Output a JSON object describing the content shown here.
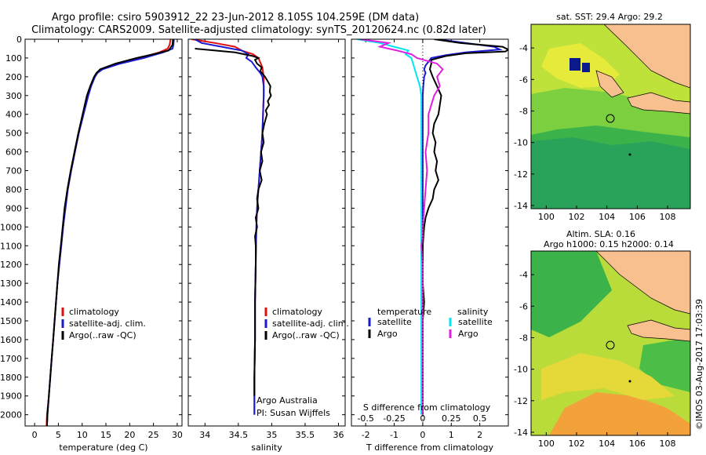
{
  "header": {
    "title_line1": "Argo profile: csiro 5903912_22 23-Jun-2012 8.105S 104.259E (DM data)",
    "title_line2": "Climatology: CARS2009. Satellite-adjusted climatology: synTS_20120624.nc (0.82d later)"
  },
  "colors": {
    "climatology": "#e01010",
    "satellite": "#1a1ad0",
    "argo": "#000000",
    "salinity_satellite": "#00e5ee",
    "salinity_argo": "#e020e0",
    "land": "#f7c08e",
    "sst_deep": "#2fa84f",
    "sla_warm": "#f3a23b"
  },
  "chart_data": [
    {
      "type": "line",
      "panel": "temperature",
      "xlabel": "temperature (deg C)",
      "xlim": [
        -2,
        31
      ],
      "xticks": [
        0,
        5,
        10,
        15,
        20,
        25,
        30
      ],
      "ylim": [
        0,
        2060
      ],
      "yticks": [
        0,
        100,
        200,
        300,
        400,
        500,
        600,
        700,
        800,
        900,
        1000,
        1100,
        1200,
        1300,
        1400,
        1500,
        1600,
        1700,
        1800,
        1900,
        2000
      ],
      "y_inverted": true,
      "legend": [
        "climatology",
        "satellite-adj. clim.",
        "Argo(..raw -QC)"
      ],
      "series": [
        {
          "name": "climatology",
          "color": "climatology",
          "depth": [
            0,
            30,
            50,
            70,
            100,
            130,
            160,
            180,
            200,
            250,
            300,
            400,
            500,
            600,
            700,
            800,
            900,
            1000,
            1100,
            1200,
            1300,
            1400,
            1500,
            1600,
            1700,
            1800,
            1900,
            2000,
            2060
          ],
          "values": [
            28.6,
            28.4,
            28.0,
            26.2,
            22.0,
            17.5,
            14.0,
            13.0,
            12.6,
            11.8,
            11.2,
            10.2,
            9.2,
            8.4,
            7.6,
            6.9,
            6.4,
            6.0,
            5.6,
            5.2,
            4.8,
            4.5,
            4.2,
            3.9,
            3.6,
            3.3,
            3.0,
            2.6,
            2.5
          ]
        },
        {
          "name": "satellite-adj. clim.",
          "color": "satellite",
          "depth": [
            0,
            30,
            50,
            70,
            100,
            130,
            160,
            180,
            200,
            250,
            300,
            400,
            500,
            600,
            700,
            800,
            900,
            1000,
            1100,
            1200,
            1300,
            1400,
            1500,
            1600,
            1700,
            1800,
            1900,
            2000,
            2060
          ],
          "values": [
            29.3,
            29.2,
            29.0,
            27.0,
            23.0,
            18.0,
            14.3,
            13.2,
            12.7,
            11.9,
            11.3,
            10.3,
            9.3,
            8.5,
            7.7,
            7.0,
            6.5,
            6.0,
            5.6,
            5.2,
            4.8,
            4.5,
            4.2,
            3.9,
            3.6,
            3.3,
            3.0,
            2.7,
            2.6
          ]
        },
        {
          "name": "Argo(..raw -QC)",
          "color": "argo",
          "depth": [
            0,
            30,
            60,
            80,
            100,
            130,
            160,
            180,
            200,
            250,
            300,
            400,
            500,
            600,
            700,
            800,
            900,
            1000,
            1100,
            1200,
            1300,
            1400,
            1500,
            1600,
            1700,
            1800,
            1900,
            2000,
            2060
          ],
          "values": [
            29.1,
            29.0,
            28.2,
            25.0,
            21.5,
            17.0,
            13.8,
            13.0,
            12.5,
            11.7,
            11.0,
            10.1,
            9.2,
            8.4,
            7.6,
            6.9,
            6.3,
            5.9,
            5.5,
            5.1,
            4.8,
            4.5,
            4.2,
            3.9,
            3.6,
            3.3,
            3.0,
            2.7,
            2.6
          ]
        }
      ]
    },
    {
      "type": "line",
      "panel": "salinity",
      "xlabel": "salinity",
      "xlim": [
        33.75,
        36.1
      ],
      "xticks": [
        34,
        34.5,
        35,
        35.5,
        36
      ],
      "ylim": [
        0,
        2060
      ],
      "y_inverted": true,
      "legend": [
        "climatology",
        "satellite-adj. clim.",
        "Argo(..raw -QC)"
      ],
      "annotation": [
        "Argo Australia",
        "PI: Susan Wijffels"
      ],
      "series": [
        {
          "name": "climatology",
          "color": "climatology",
          "depth": [
            0,
            20,
            40,
            60,
            80,
            100,
            150,
            200,
            300,
            400,
            500,
            600,
            700,
            800,
            900,
            1000,
            1200,
            1400,
            1600,
            1800,
            2000
          ],
          "values": [
            33.8,
            34.15,
            34.45,
            34.55,
            34.72,
            34.8,
            34.86,
            34.88,
            34.88,
            34.87,
            34.86,
            34.84,
            34.82,
            34.8,
            34.78,
            34.77,
            34.76,
            34.75,
            34.75,
            34.74,
            34.74
          ]
        },
        {
          "name": "satellite-adj. clim.",
          "color": "satellite",
          "depth": [
            0,
            20,
            40,
            60,
            80,
            100,
            120,
            150,
            180,
            200,
            250,
            300,
            400,
            500,
            600,
            700,
            800,
            900,
            1000,
            1200,
            1400,
            1600,
            1800,
            2000
          ],
          "values": [
            33.85,
            33.95,
            34.25,
            34.55,
            34.65,
            34.62,
            34.7,
            34.76,
            34.83,
            34.86,
            34.88,
            34.88,
            34.87,
            34.86,
            34.84,
            34.82,
            34.8,
            34.78,
            34.77,
            34.76,
            34.75,
            34.75,
            34.74,
            34.74
          ]
        },
        {
          "name": "Argo(..raw -QC)",
          "color": "argo",
          "depth": [
            50,
            70,
            90,
            100,
            110,
            130,
            150,
            170,
            200,
            230,
            250,
            280,
            300,
            330,
            350,
            380,
            400,
            450,
            500,
            550,
            600,
            650,
            700,
            750,
            800,
            850,
            900,
            950,
            1000,
            1050,
            1100,
            1200,
            1400,
            1600,
            1800,
            1900
          ],
          "values": [
            33.85,
            34.45,
            34.72,
            34.8,
            34.75,
            34.78,
            34.85,
            34.83,
            34.9,
            34.95,
            34.98,
            34.97,
            34.99,
            34.94,
            34.96,
            34.91,
            34.93,
            34.89,
            34.86,
            34.88,
            34.84,
            34.86,
            34.82,
            34.85,
            34.8,
            34.78,
            34.8,
            34.76,
            34.78,
            34.75,
            34.76,
            34.76,
            34.75,
            34.75,
            34.74,
            34.74
          ]
        }
      ]
    },
    {
      "type": "line",
      "panel": "difference",
      "xlabel": "T difference from climatology",
      "xlabel_top": "S difference from climatology",
      "xlim": [
        -2.5,
        3
      ],
      "xticks": [
        -2,
        -1,
        0,
        1,
        2
      ],
      "xticks_top_labels": [
        "-0.5",
        "-0.25",
        "0",
        "0.25",
        "0.5"
      ],
      "xticks_top_positions": [
        -2,
        -1,
        0,
        1,
        2
      ],
      "ylim": [
        0,
        2060
      ],
      "y_inverted": true,
      "legend": {
        "temperature": [
          "satellite",
          "Argo"
        ],
        "salinity": [
          "satellite",
          "Argo"
        ]
      },
      "series": [
        {
          "name": "temperature satellite",
          "color": "satellite",
          "depth": [
            0,
            20,
            40,
            55,
            70,
            85,
            100,
            120,
            140,
            160,
            180,
            200,
            250,
            300,
            400,
            500,
            700,
            900,
            1100,
            1300,
            1500,
            1700,
            1900,
            2000
          ],
          "values": [
            0.5,
            1.5,
            2.5,
            2.7,
            1.5,
            0.8,
            0.3,
            0.2,
            0.1,
            0.05,
            0.1,
            0.05,
            0.02,
            0.0,
            0.0,
            0.0,
            0.0,
            0.0,
            0.0,
            0.0,
            0.0,
            0.0,
            0.0,
            0.0
          ]
        },
        {
          "name": "temperature Argo",
          "color": "argo",
          "depth": [
            0,
            20,
            40,
            55,
            65,
            75,
            90,
            110,
            130,
            160,
            200,
            250,
            300,
            350,
            400,
            450,
            500,
            550,
            600,
            650,
            700,
            750,
            800,
            850,
            900,
            950,
            1000,
            1100,
            1200,
            1300,
            1400,
            1500,
            1600,
            1700,
            1800,
            1900,
            2000
          ],
          "values": [
            0.4,
            1.3,
            2.8,
            3.0,
            2.9,
            1.5,
            0.8,
            0.3,
            0.3,
            0.25,
            0.35,
            0.5,
            0.65,
            0.6,
            0.55,
            0.4,
            0.35,
            0.45,
            0.4,
            0.5,
            0.45,
            0.55,
            0.4,
            0.35,
            0.2,
            0.1,
            0.05,
            0.0,
            0.0,
            0.0,
            0.05,
            0.0,
            0.0,
            0.0,
            0.0,
            0.0,
            0.0
          ]
        },
        {
          "name": "salinity satellite",
          "color": "salinity_satellite",
          "depth": [
            0,
            20,
            40,
            60,
            80,
            100,
            150,
            200,
            250,
            300,
            400,
            500,
            600,
            700,
            800,
            900,
            1000,
            1200,
            1400,
            1600,
            1800,
            2000
          ],
          "values": [
            -2.3,
            -1.5,
            -1.0,
            -0.5,
            -0.6,
            -0.4,
            -0.3,
            -0.2,
            -0.1,
            -0.05,
            -0.05,
            -0.05,
            -0.05,
            -0.05,
            -0.05,
            -0.05,
            -0.05,
            -0.05,
            -0.05,
            -0.05,
            -0.05,
            -0.05
          ]
        },
        {
          "name": "salinity Argo",
          "color": "salinity_argo",
          "depth": [
            0,
            20,
            40,
            60,
            80,
            100,
            130,
            160,
            200,
            250,
            300,
            350,
            400,
            500,
            600,
            700,
            800,
            900,
            1000,
            1050,
            1100,
            1200,
            1300,
            1400,
            1500,
            1600,
            1700,
            1800,
            1900,
            2000
          ],
          "values": [
            -2.2,
            -1.2,
            -1.5,
            -0.9,
            -0.4,
            -0.2,
            0.5,
            0.7,
            0.5,
            0.6,
            0.4,
            0.3,
            0.2,
            0.2,
            0.1,
            0.15,
            0.1,
            0.05,
            0.0,
            0.0,
            -0.05,
            0.0,
            0.0,
            0.0,
            0.0,
            0.0,
            0.0,
            0.0,
            0.0,
            0.0
          ]
        }
      ]
    },
    {
      "type": "heatmap",
      "panel": "sst_map",
      "title": "sat. SST: 29.4  Argo: 29.2",
      "xticks": [
        100,
        102,
        104,
        106,
        108
      ],
      "yticks": [
        -4,
        -6,
        -8,
        -10,
        -12,
        -14
      ],
      "xlim": [
        99,
        109.5
      ],
      "ylim": [
        -14.2,
        -2.5
      ],
      "marker": {
        "lon": 104.259,
        "lat": -8.105
      }
    },
    {
      "type": "heatmap",
      "panel": "sla_map",
      "title": "Altim. SLA: 0.16",
      "subtitle": "Argo h1000: 0.15 h2000: 0.14",
      "xticks": [
        100,
        102,
        104,
        106,
        108
      ],
      "yticks": [
        -4,
        -6,
        -8,
        -10,
        -12,
        -14
      ],
      "xlim": [
        99,
        109.5
      ],
      "ylim": [
        -14.2,
        -2.5
      ],
      "marker": {
        "lon": 104.259,
        "lat": -8.105
      }
    }
  ],
  "credit": "©IMOS 03-Aug-2017 17:03:39"
}
